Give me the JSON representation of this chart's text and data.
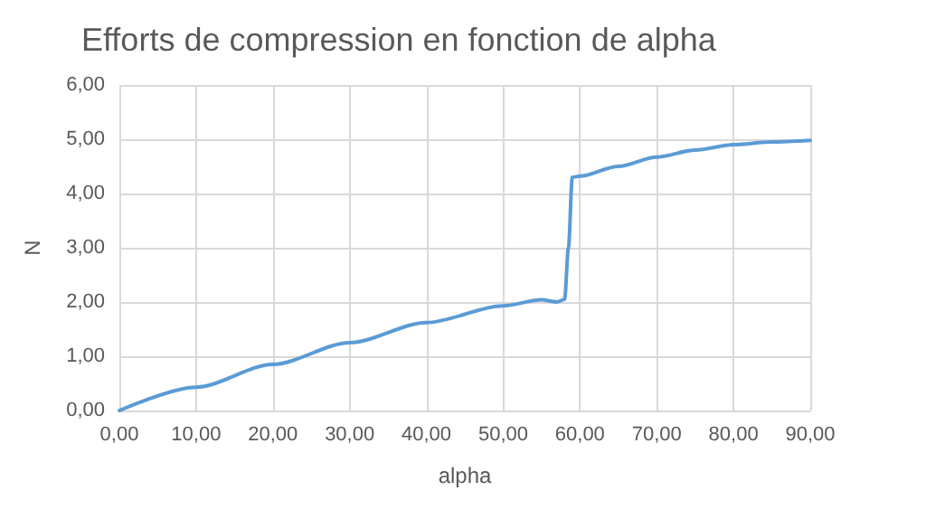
{
  "chart_data": {
    "type": "line",
    "title": "Efforts de compression en fonction de alpha",
    "xlabel": "alpha",
    "ylabel": "N",
    "x": [
      0,
      10,
      20,
      30,
      40,
      50,
      55,
      57,
      58,
      58.5,
      59,
      60,
      65,
      70,
      75,
      80,
      85,
      90
    ],
    "series": [
      {
        "color": "#5b9bd5",
        "values": [
          0,
          0.43,
          0.85,
          1.25,
          1.62,
          1.93,
          2.04,
          2.0,
          2.05,
          3.0,
          4.3,
          4.32,
          4.5,
          4.67,
          4.8,
          4.9,
          4.95,
          4.98
        ]
      }
    ],
    "xlim": [
      0,
      90
    ],
    "ylim": [
      0,
      6
    ],
    "xticks": [
      {
        "value": 0,
        "label": "0,00"
      },
      {
        "value": 10,
        "label": "10,00"
      },
      {
        "value": 20,
        "label": "20,00"
      },
      {
        "value": 30,
        "label": "30,00"
      },
      {
        "value": 40,
        "label": "40,00"
      },
      {
        "value": 50,
        "label": "50,00"
      },
      {
        "value": 60,
        "label": "60,00"
      },
      {
        "value": 70,
        "label": "70,00"
      },
      {
        "value": 80,
        "label": "80,00"
      },
      {
        "value": 90,
        "label": "90,00"
      }
    ],
    "yticks": [
      {
        "value": 0,
        "label": "0,00"
      },
      {
        "value": 1,
        "label": "1,00"
      },
      {
        "value": 2,
        "label": "2,00"
      },
      {
        "value": 3,
        "label": "3,00"
      },
      {
        "value": 4,
        "label": "4,00"
      },
      {
        "value": 5,
        "label": "5,00"
      },
      {
        "value": 6,
        "label": "6,00"
      }
    ],
    "grid": true,
    "marker": "none",
    "line_style": "solid"
  }
}
